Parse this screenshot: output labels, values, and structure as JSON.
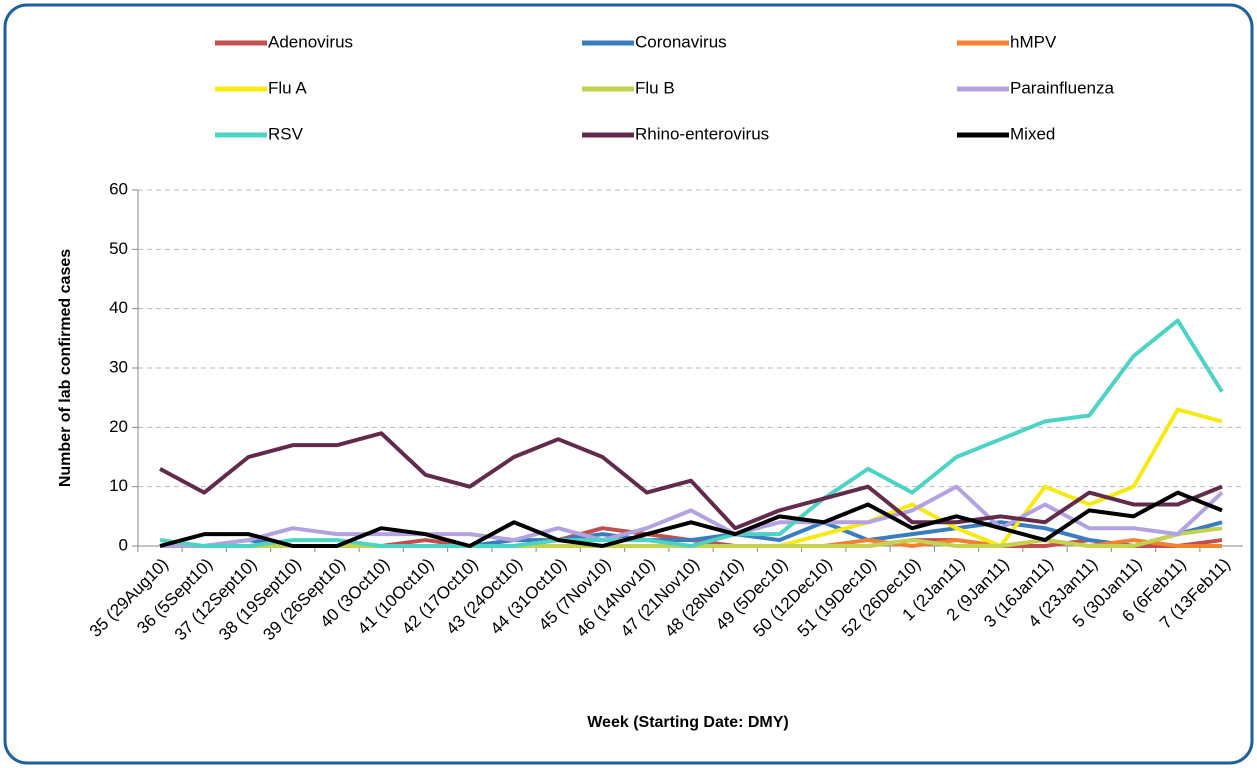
{
  "chart_data": {
    "type": "line",
    "y_label": "Number of lab confirmed cases",
    "x_label": "Week (Starting Date: DMY)",
    "categories": [
      "35 (29Aug10)",
      "36 (5Sept10)",
      "37 (12Sept10)",
      "38 (19Sept10)",
      "39 (26Sept10)",
      "40 (3Oct10)",
      "41 (10Oct10)",
      "42 (17Oct10)",
      "43 (24Oct10)",
      "44 (31Oct10)",
      "45 (7Nov10)",
      "46 (14Nov10)",
      "47 (21Nov10)",
      "48 (28Nov10)",
      "49 (5Dec10)",
      "50 (12Dec10)",
      "51 (19Dec10)",
      "52 (26Dec10)",
      "1 (2Jan11)",
      "2 (9Jan11)",
      "3 (16Jan11)",
      "4 (23Jan11)",
      "5 (30Jan11)",
      "6 (6Feb11)",
      "7 (13Feb11)"
    ],
    "series": [
      {
        "name": "Adenovirus",
        "color": "#c0504d",
        "values": [
          0,
          0,
          0,
          0,
          0,
          0,
          1,
          0,
          0,
          1,
          3,
          2,
          1,
          0,
          0,
          0,
          0,
          1,
          1,
          0,
          0,
          1,
          0,
          0,
          1
        ]
      },
      {
        "name": "Coronavirus",
        "color": "#3a7cc0",
        "values": [
          0,
          0,
          1,
          0,
          0,
          0,
          0,
          0,
          1,
          1,
          2,
          1,
          1,
          2,
          1,
          4,
          1,
          2,
          3,
          4,
          3,
          1,
          0,
          2,
          4
        ]
      },
      {
        "name": "hMPV",
        "color": "#f5802e",
        "values": [
          0,
          0,
          0,
          0,
          0,
          0,
          0,
          0,
          0,
          0,
          0,
          0,
          0,
          0,
          0,
          0,
          1,
          0,
          1,
          0,
          1,
          0,
          1,
          0,
          0
        ]
      },
      {
        "name": "Flu A",
        "color": "#f7ea12",
        "values": [
          0,
          0,
          0,
          0,
          0,
          0,
          0,
          0,
          0,
          0,
          0,
          0,
          0,
          0,
          0,
          2,
          4,
          7,
          3,
          0,
          10,
          7,
          10,
          23,
          21
        ]
      },
      {
        "name": "Flu B",
        "color": "#c4d34f",
        "values": [
          0,
          0,
          0,
          0,
          0,
          0,
          0,
          0,
          0,
          0,
          0,
          0,
          0,
          0,
          0,
          0,
          0,
          1,
          0,
          0,
          1,
          0,
          0,
          2,
          3
        ]
      },
      {
        "name": "Parainfluenza",
        "color": "#b3a2e0",
        "values": [
          0,
          0,
          1,
          3,
          2,
          2,
          2,
          2,
          1,
          3,
          1,
          3,
          6,
          2,
          4,
          4,
          4,
          6,
          10,
          3,
          7,
          3,
          3,
          2,
          9
        ]
      },
      {
        "name": "RSV",
        "color": "#4dd3c3",
        "values": [
          1,
          0,
          0,
          1,
          1,
          0,
          0,
          0,
          0,
          1,
          1,
          1,
          0,
          2,
          2,
          8,
          13,
          9,
          15,
          18,
          21,
          22,
          32,
          38,
          26
        ]
      },
      {
        "name": "Rhino-enterovirus",
        "color": "#622a4c",
        "values": [
          13,
          9,
          15,
          17,
          17,
          19,
          12,
          10,
          15,
          18,
          15,
          9,
          11,
          3,
          6,
          8,
          10,
          4,
          4,
          5,
          4,
          9,
          7,
          7,
          10
        ]
      },
      {
        "name": "Mixed",
        "color": "#000000",
        "values": [
          0,
          2,
          2,
          0,
          0,
          3,
          2,
          0,
          4,
          1,
          0,
          2,
          4,
          2,
          5,
          4,
          7,
          3,
          5,
          3,
          1,
          6,
          5,
          9,
          6
        ]
      }
    ],
    "ylim": [
      0,
      60
    ],
    "yticks": [
      0,
      10,
      20,
      30,
      40,
      50,
      60
    ],
    "grid": true
  }
}
